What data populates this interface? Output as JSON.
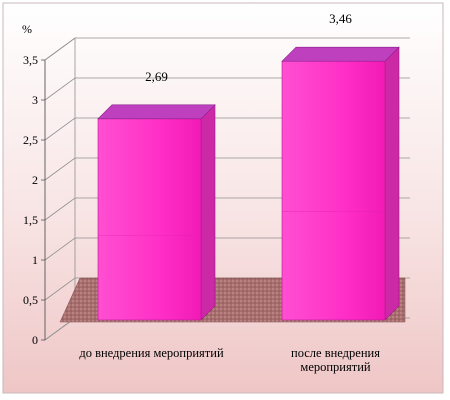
{
  "chart_data": {
    "type": "bar",
    "unit_label": "%",
    "categories": [
      "до внедрения мероприятий",
      "после внедрения мероприятий"
    ],
    "category_lines": [
      [
        "до внедрения мероприятий"
      ],
      [
        "после внедрения",
        "мероприятий"
      ]
    ],
    "values": [
      2.69,
      3.46
    ],
    "value_labels": [
      "2,69",
      "3,46"
    ],
    "ylim": [
      0,
      3.5
    ],
    "yticks": [
      0,
      0.5,
      1,
      1.5,
      2,
      2.5,
      3,
      3.5
    ],
    "ytick_labels": [
      "0",
      "0,5",
      "1",
      "1,5",
      "2",
      "2,5",
      "3",
      "3,5"
    ],
    "grid": true,
    "legend": "none"
  },
  "colors": {
    "bar_front": "#ff33cc",
    "bar_top": "#bf40bf",
    "bar_side": "#cc29a6",
    "floor": "#a87070",
    "grid": "#909090",
    "background_top": "#ffffff",
    "background_bottom": "#f0c8c8"
  }
}
